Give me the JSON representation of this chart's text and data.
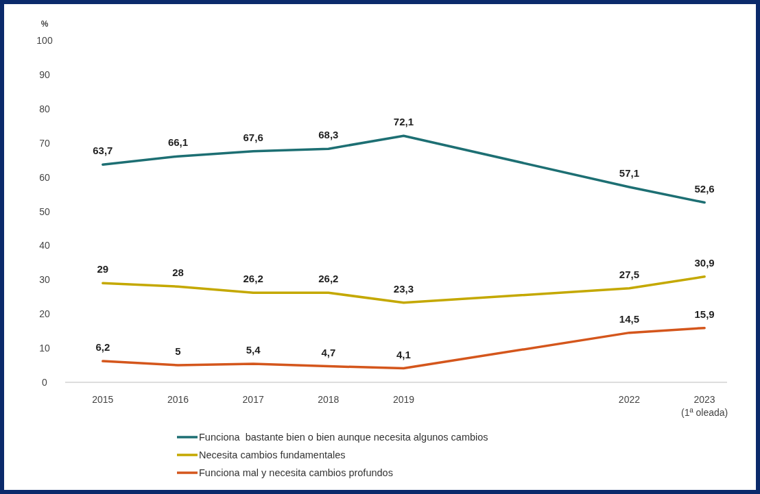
{
  "chart_data": {
    "type": "line",
    "ylabel": "%",
    "x": [
      2015,
      2016,
      2017,
      2018,
      2019,
      2022,
      2023
    ],
    "xlim": [
      2014.5,
      2023.3
    ],
    "xticks": [
      2015,
      2016,
      2017,
      2018,
      2019,
      2022,
      {
        "value": 2023,
        "label": "2023\n(1ª oleada)"
      }
    ],
    "ylim": [
      0,
      100
    ],
    "yticks": [
      0,
      10,
      20,
      30,
      40,
      50,
      60,
      70,
      80,
      90,
      100
    ],
    "series": [
      {
        "name": "Funciona  bastante bien o bien aunque necesita algunos cambios",
        "color": "#1d6f73",
        "values": [
          63.7,
          66.1,
          67.6,
          68.3,
          72.1,
          57.1,
          52.6
        ],
        "value_labels": [
          "63,7",
          "66,1",
          "67,6",
          "68,3",
          "72,1",
          "57,1",
          "52,6"
        ]
      },
      {
        "name": "Necesita cambios fundamentales",
        "color": "#c4a800",
        "values": [
          29,
          28,
          26.2,
          26.2,
          23.3,
          27.5,
          30.9
        ],
        "value_labels": [
          "29",
          "28",
          "26,2",
          "26,2",
          "23,3",
          "27,5",
          "30,9"
        ]
      },
      {
        "name": "Funciona mal y necesita cambios profundos",
        "color": "#d4561c",
        "values": [
          6.2,
          5,
          5.4,
          4.7,
          4.1,
          14.5,
          15.9
        ],
        "value_labels": [
          "6,2",
          "5",
          "5,4",
          "4,7",
          "4,1",
          "14,5",
          "15,9"
        ]
      }
    ],
    "grid": false,
    "legend": "bottom",
    "marker": "none",
    "line_style": "solid"
  }
}
